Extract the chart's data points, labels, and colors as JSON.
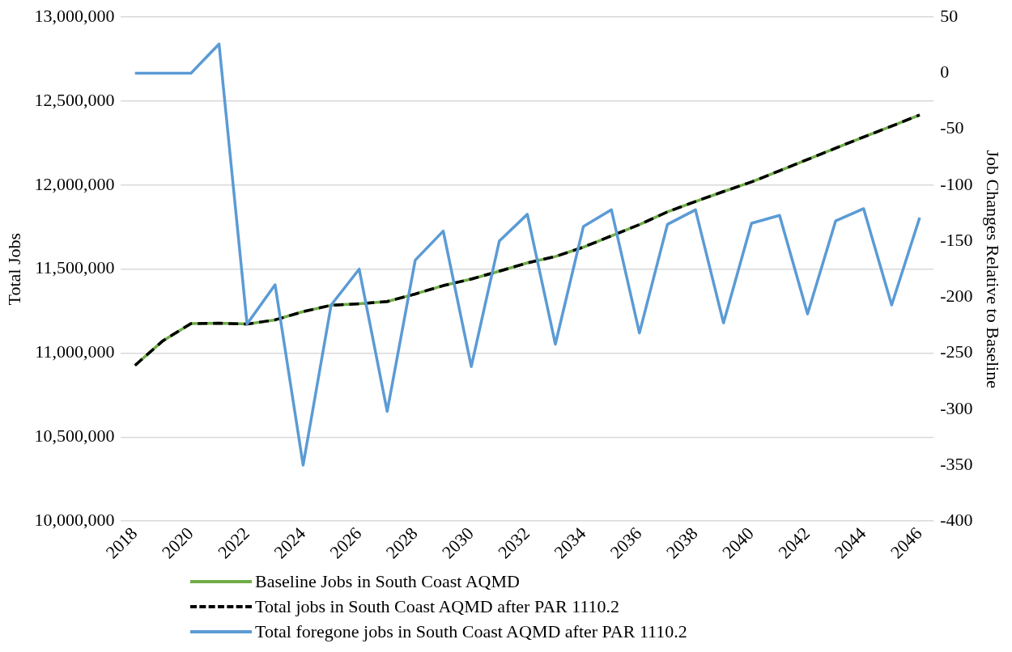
{
  "chart_data": {
    "type": "line",
    "categories": [
      "2018",
      null,
      "2020",
      null,
      "2022",
      null,
      "2024",
      null,
      "2026",
      null,
      "2028",
      null,
      "2030",
      null,
      "2032",
      null,
      "2034",
      null,
      "2036",
      null,
      "2038",
      null,
      "2040",
      null,
      "2042",
      null,
      "2044",
      null,
      "2046"
    ],
    "ylabel": "Total Jobs",
    "y2label": "Job Changes Relative to Baseline",
    "ylim": [
      10000000,
      13000000
    ],
    "yticks": [
      {
        "value": 10000000,
        "label": "10,000,000"
      },
      {
        "value": 10500000,
        "label": "10,500,000"
      },
      {
        "value": 11000000,
        "label": "11,000,000"
      },
      {
        "value": 11500000,
        "label": "11,500,000"
      },
      {
        "value": 12000000,
        "label": "12,000,000"
      },
      {
        "value": 12500000,
        "label": "12,500,000"
      },
      {
        "value": 13000000,
        "label": "13,000,000"
      }
    ],
    "y2lim": [
      -400,
      50
    ],
    "y2ticks": [
      -400,
      -350,
      -300,
      -250,
      -200,
      -150,
      -100,
      -50,
      0,
      50
    ],
    "grid": "y",
    "legend": "bottom",
    "marker": "none",
    "series": [
      {
        "name": "Baseline Jobs in South Coast AQMD",
        "color": "#70ad47",
        "line_style": "solid",
        "values": [
          10927000,
          11074000,
          11176000,
          11178000,
          11173000,
          11198000,
          11247000,
          11285000,
          11294000,
          11307000,
          11352000,
          11402000,
          11441000,
          11488000,
          11537000,
          11575000,
          11631000,
          11698000,
          11765000,
          11841000,
          11903000,
          11962000,
          12019000,
          12086000,
          12153000,
          12220000,
          12287000,
          12351000,
          12418000
        ]
      },
      {
        "name": "Total jobs in South Coast AQMD after PAR 1110.2",
        "color": "#000000",
        "line_style": "dashed",
        "values": [
          10927000,
          11074000,
          11176000,
          11178000,
          11173000,
          11198000,
          11247000,
          11285000,
          11294000,
          11307000,
          11352000,
          11402000,
          11441000,
          11488000,
          11537000,
          11575000,
          11631000,
          11698000,
          11765000,
          11841000,
          11903000,
          11962000,
          12019000,
          12086000,
          12153000,
          12220000,
          12287000,
          12351000,
          12418000
        ]
      },
      {
        "name": "Total foregone jobs in South Coast AQMD after PAR 1110.2",
        "color": "#5b9bd5",
        "line_style": "solid",
        "axis": "y2",
        "values": [
          0,
          0,
          0,
          26,
          -224,
          -189,
          -350,
          -207,
          -175,
          -302,
          -167,
          -141,
          -262,
          -150,
          -126,
          -242,
          -137,
          -122,
          -232,
          -135,
          -122,
          -223,
          -134,
          -127,
          -215,
          -132,
          -121,
          -207,
          -129
        ]
      }
    ]
  }
}
